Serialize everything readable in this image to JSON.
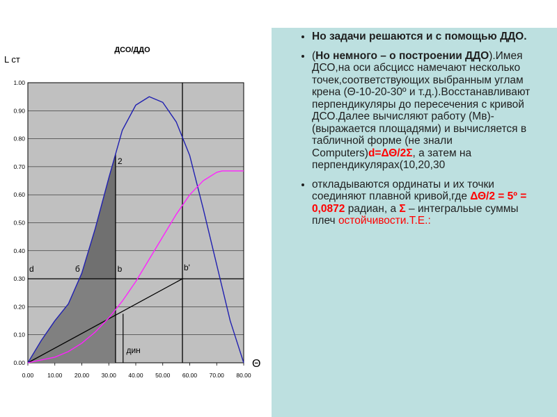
{
  "chart_data": {
    "type": "line",
    "title": "ДСО/ДДО",
    "ylabel": "L ст",
    "xlabel": "Θ",
    "xlim": [
      0,
      80
    ],
    "ylim": [
      0,
      1
    ],
    "x_ticks": [
      "0.00",
      "10.00",
      "20.00",
      "30.00",
      "40.00",
      "50.00",
      "60.00",
      "70.00",
      "80.00"
    ],
    "y_ticks": [
      "0.00",
      "0.10",
      "0.20",
      "0.30",
      "0.40",
      "0.50",
      "0.60",
      "0.70",
      "0.80",
      "0.90",
      "1.00"
    ],
    "series": [
      {
        "key": "dso",
        "color": "#2020b0",
        "x": [
          0,
          5,
          10,
          15,
          20,
          25,
          30,
          35,
          40,
          45,
          50,
          55,
          60,
          65,
          70,
          75,
          80
        ],
        "values": [
          0.0,
          0.08,
          0.15,
          0.21,
          0.32,
          0.48,
          0.66,
          0.83,
          0.92,
          0.95,
          0.93,
          0.86,
          0.74,
          0.55,
          0.35,
          0.15,
          0.0
        ]
      },
      {
        "key": "ddo",
        "color": "#ff20ff",
        "x": [
          0,
          5,
          10,
          15,
          20,
          25,
          30,
          35,
          40,
          45,
          50,
          55,
          60,
          65,
          70,
          72,
          75,
          80
        ],
        "values": [
          0.0,
          0.01,
          0.02,
          0.04,
          0.07,
          0.11,
          0.16,
          0.22,
          0.29,
          0.37,
          0.45,
          0.53,
          0.6,
          0.65,
          0.68,
          0.685,
          0.685,
          0.685
        ]
      }
    ],
    "construction": {
      "horizontal_y": 0.3,
      "vertical_x_b": 32.5,
      "vertical_x_b_prime": 57.3,
      "vertical_x_din": 35.3,
      "tangent_line": {
        "x": [
          0,
          57.3
        ],
        "values": [
          0,
          0.3
        ]
      }
    },
    "annotations": [
      {
        "text": "2",
        "x": 33.3,
        "y": 0.71
      },
      {
        "text": "d",
        "x": 0.5,
        "y": 0.325
      },
      {
        "text": "б",
        "x": 17.5,
        "y": 0.325
      },
      {
        "text": "b",
        "x": 33.2,
        "y": 0.325
      },
      {
        "text": "b'",
        "x": 57.8,
        "y": 0.33
      },
      {
        "text": "дин",
        "x": 36.5,
        "y": 0.035
      }
    ]
  },
  "text": {
    "bullet1": "Но задачи решаются и с помощью ДДО.",
    "bullet2_open": "(",
    "bullet2_bold": "Но немного – о построении ДДО",
    "bullet2_text": ").Имея ДСО,на оси абсцисс намечают несколько точек,соответствующих выбранным углам крена (Θ-10-20-30º и т.д.).Восстанавливают перпендикуляры до пересечения с кривой ДСО.Далее вычисляют работу (Мв)-(выражается площадями) и вычисляется в табличной форме (не знали Computers)",
    "bullet2_formula": "d=ΔΘ/2Σ",
    "bullet2_tail": ", а затем на перпендикулярах(10,20,30",
    "bullet3_text": "откладываются ординаты и их точки соединяют плавной кривой,где ",
    "bullet3_formula": "ΔΘ/2 = 5º = 0,0872",
    "bullet3_mid": " радиан, а ",
    "bullet3_sigma": "Σ",
    "bullet3_mid2": " – интегральые суммы плеч ",
    "bullet3_red": "остойчивости.",
    "bullet3_end": "Т.Е.:"
  }
}
